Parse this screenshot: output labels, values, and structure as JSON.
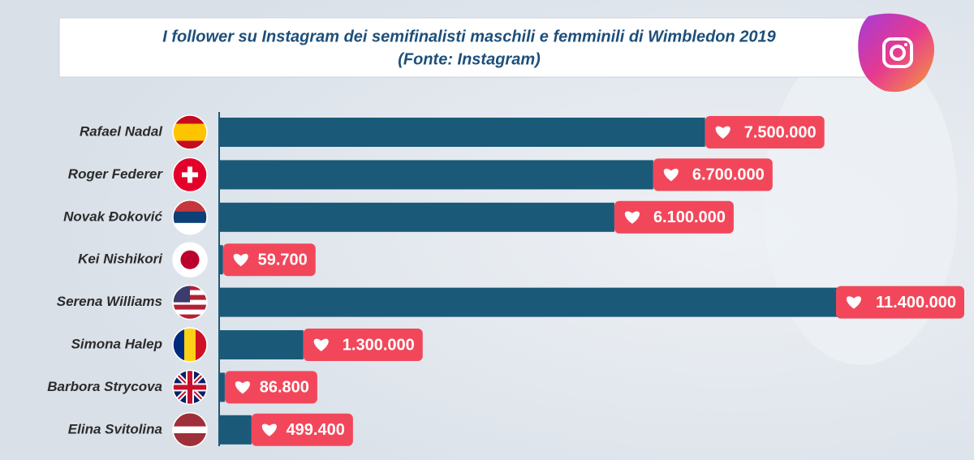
{
  "chart_data": {
    "type": "bar",
    "orientation": "horizontal",
    "title": "I follower su Instagram dei semifinalisti maschili e femminili di Wimbledon 2019",
    "subtitle": "(Fonte: Instagram)",
    "categories": [
      "Rafael Nadal",
      "Roger Federer",
      "Novak Đoković",
      "Kei Nishikori",
      "Serena Williams",
      "Simona Halep",
      "Barbora Strycova",
      "Elina Svitolina"
    ],
    "values": [
      7500000,
      6700000,
      6100000,
      59700,
      11400000,
      1300000,
      86800,
      499400
    ],
    "value_labels": [
      "7.500.000",
      "6.700.000",
      "6.100.000",
      "59.700",
      "11.400.000",
      "1.300.000",
      "86.800",
      "499.400"
    ],
    "color": "#1a5a78",
    "label_color": "#f2475a"
  }
}
